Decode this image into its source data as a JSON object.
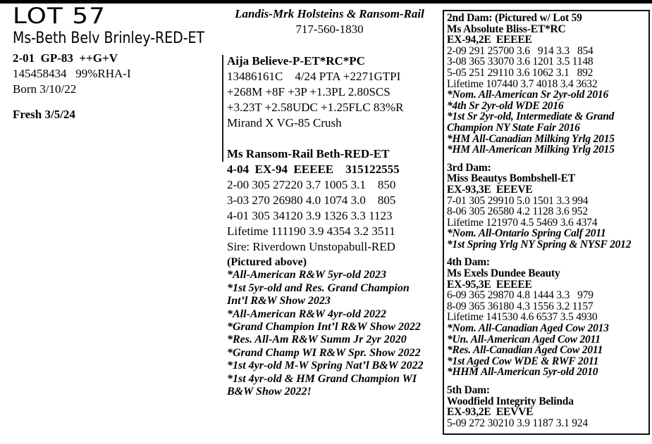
{
  "lot": {
    "label": "LOT 57",
    "name": "Ms-Beth Belv Brinley-RED-ET",
    "classification": "2-01  GP-83  ++G+V",
    "reg": "145458434   99%RHA-I",
    "born": "Born 3/10/22",
    "fresh": "Fresh 3/5/24"
  },
  "consignor": {
    "name": "Landis-Mrk Holsteins & Ransom-Rail",
    "phone": "717-560-1830"
  },
  "sire": {
    "name": "Aija Believe-P-ET*RC*PC",
    "lines": [
      "13486161C    4/24 PTA +2271GTPI",
      "+268M +8F +3P +1.3PL 2.80SCS",
      "+3.23T +2.58UDC +1.25FLC 83%R",
      "Mirand X VG-85 Crush"
    ]
  },
  "dam": {
    "name": "Ms Ransom-Rail Beth-RED-ET",
    "classification": "4-04  EX-94  EEEEE    315122555",
    "records": [
      "2-00 305 27220 3.7 1005 3.1    850",
      "3-03 270 26980 4.0 1074 3.0    805",
      "4-01 305 34120 3.9 1326 3.3 1123",
      "Lifetime 111190 3.9 4354 3.2 3511",
      "Sire: Riverdown Unstopabull-RED"
    ],
    "pictured": "(Pictured above)",
    "awards": [
      "*All-American R&W 5yr-old 2023",
      "*1st 5yr-old and Res. Grand Champion",
      "Int’l R&W Show 2023",
      "*All-American R&W 4yr-old 2022",
      "*Grand Champion Int’l R&W Show 2022",
      "*Res. All-Am R&W Summ Jr 2yr 2020",
      "*Grand Champ WI R&W Spr. Show 2022",
      "*1st 4yr-old M-W Spring Nat’l B&W 2022",
      "*1st 4yr-old & HM Grand Champion WI",
      "B&W Show 2022!"
    ]
  },
  "dams": [
    {
      "heading": "2nd Dam: (Pictured w/ Lot 59",
      "name": "Ms Absolute Bliss-ET*RC",
      "classification": "EX-94,2E  EEEEE",
      "records": [
        "2-09 291 25700 3.6   914 3.3   854",
        "3-08 365 33070 3.6 1201 3.5 1148",
        "5-05 251 29110 3.6 1062 3.1   892",
        "Lifetime 107440 3.7 4018 3.4 3632"
      ],
      "awards": [
        "*Nom. All-American Sr 2yr-old 2016",
        "*4th Sr 2yr-old WDE 2016",
        "*1st Sr 2yr-old, Intermediate & Grand",
        "Champion NY State Fair 2016",
        "*HM All-Canadian Milking Yrlg 2015",
        "*HM All-American Milking Yrlg 2015"
      ]
    },
    {
      "heading": "3rd Dam:",
      "name": "Miss Beautys Bombshell-ET",
      "classification": "EX-93,3E  EEEVE",
      "records": [
        "7-01 305 29910 5.0 1501 3.3 994",
        "8-06 305 26580 4.2 1128 3.6 952",
        "Lifetime 121970 4.5 5469 3.6 4374"
      ],
      "awards": [
        "*Nom. All-Ontario Spring Calf 2011",
        "*1st Spring Yrlg NY Spring & NYSF 2012"
      ]
    },
    {
      "heading": "4th Dam:",
      "name": "Ms Exels Dundee Beauty",
      "classification": "EX-95,3E  EEEEE",
      "records": [
        "6-09 365 29870 4.8 1444 3.3   979",
        "8-09 365 36180 4.3 1556 3.2 1157",
        "Lifetime 141530 4.6 6537 3.5 4930"
      ],
      "awards": [
        "*Nom. All-Canadian Aged Cow 2013",
        "*Un. All-American Aged Cow 2011",
        "*Res. All-Canadian Aged Cow 2011",
        "*1st Aged Cow WDE & RWF 2011",
        "*HHM All-American 5yr-old 2010"
      ]
    },
    {
      "heading": "5th Dam:",
      "name": "Woodfield Integrity Belinda",
      "classification": "EX-93,2E  EEVVE",
      "records": [
        "5-09 272 30210 3.9 1187 3.1 924"
      ],
      "awards": []
    }
  ]
}
